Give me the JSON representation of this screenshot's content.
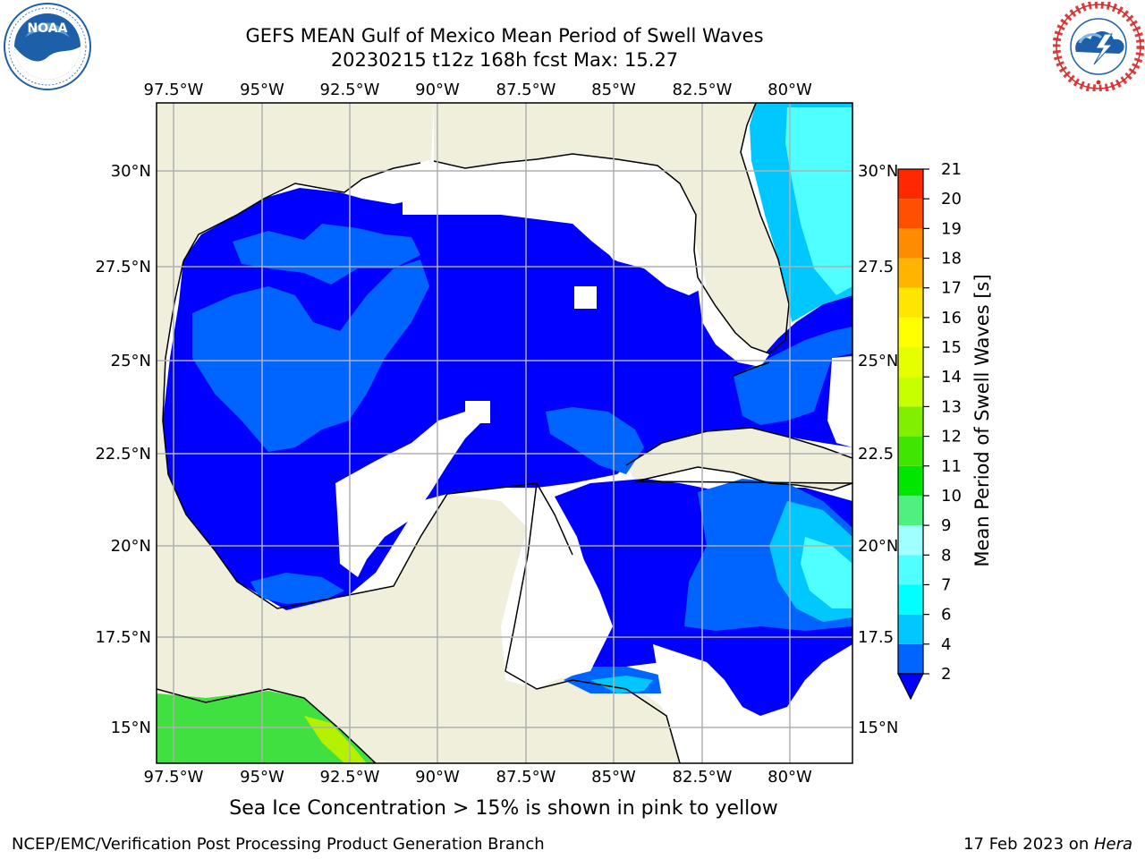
{
  "header": {
    "title_line1": "GEFS MEAN Gulf of Mexico Mean Period of Swell Waves",
    "title_line2": "20230215 t12z 168h fcst   Max: 15.27"
  },
  "logos": {
    "left": {
      "name": "NOAA",
      "ring_text": "NATIONAL OCEANIC AND ATMOSPHERIC ADMINISTRATION · U.S. DEPARTMENT OF COMMERCE",
      "colors": [
        "#1d5fa8",
        "#ffffff"
      ]
    },
    "right": {
      "name": "NATIONAL WEATHER SERVICE",
      "colors": [
        "#d62b2b",
        "#1d5fa8"
      ]
    }
  },
  "map": {
    "colors": {
      "land": "#efefdc",
      "no_data": "#ffffff",
      "grid": "#b0b0b0",
      "coast": "#000000"
    },
    "top_lon_labels": [
      "97.5°W",
      "95°W",
      "92.5°W",
      "90°W",
      "87.5°W",
      "85°W",
      "82.5°W",
      "80°W"
    ],
    "bottom_lon_labels": [
      "97.5°W",
      "95°W",
      "92.5°W",
      "90°W",
      "87.5°W",
      "85°W",
      "82.5°W",
      "80°W"
    ],
    "left_lat_labels": [
      "30°N",
      "27.5°N",
      "25°N",
      "22.5°N",
      "20°N",
      "17.5°N",
      "15°N"
    ],
    "right_lat_labels": [
      "30°N",
      "27.5",
      "25°N",
      "22.5",
      "20°N",
      "17.5",
      "15°N"
    ]
  },
  "colorbar": {
    "label": "Mean Period of Swell Waves [s]",
    "ticks": [
      "2",
      "4",
      "6",
      "7",
      "8",
      "9",
      "10",
      "11",
      "12",
      "13",
      "14",
      "15",
      "16",
      "17",
      "18",
      "19",
      "20",
      "21"
    ],
    "colors": [
      "#0064ff",
      "#00c8ff",
      "#00ffff",
      "#50ffff",
      "#a0ffff",
      "#50f080",
      "#00e600",
      "#40e600",
      "#80f000",
      "#c8ff00",
      "#e6ff00",
      "#ffff00",
      "#ffe600",
      "#ffb400",
      "#ff8c00",
      "#ff5000",
      "#ff2800",
      "#ff0000"
    ],
    "extend_color": "#0000ff"
  },
  "note": "Sea Ice Concentration > 15% is shown in pink to yellow",
  "footer": {
    "left": "NCEP/EMC/Verification Post Processing Product Generation Branch",
    "date": "17 Feb 2023 on ",
    "machine": "Hera"
  }
}
